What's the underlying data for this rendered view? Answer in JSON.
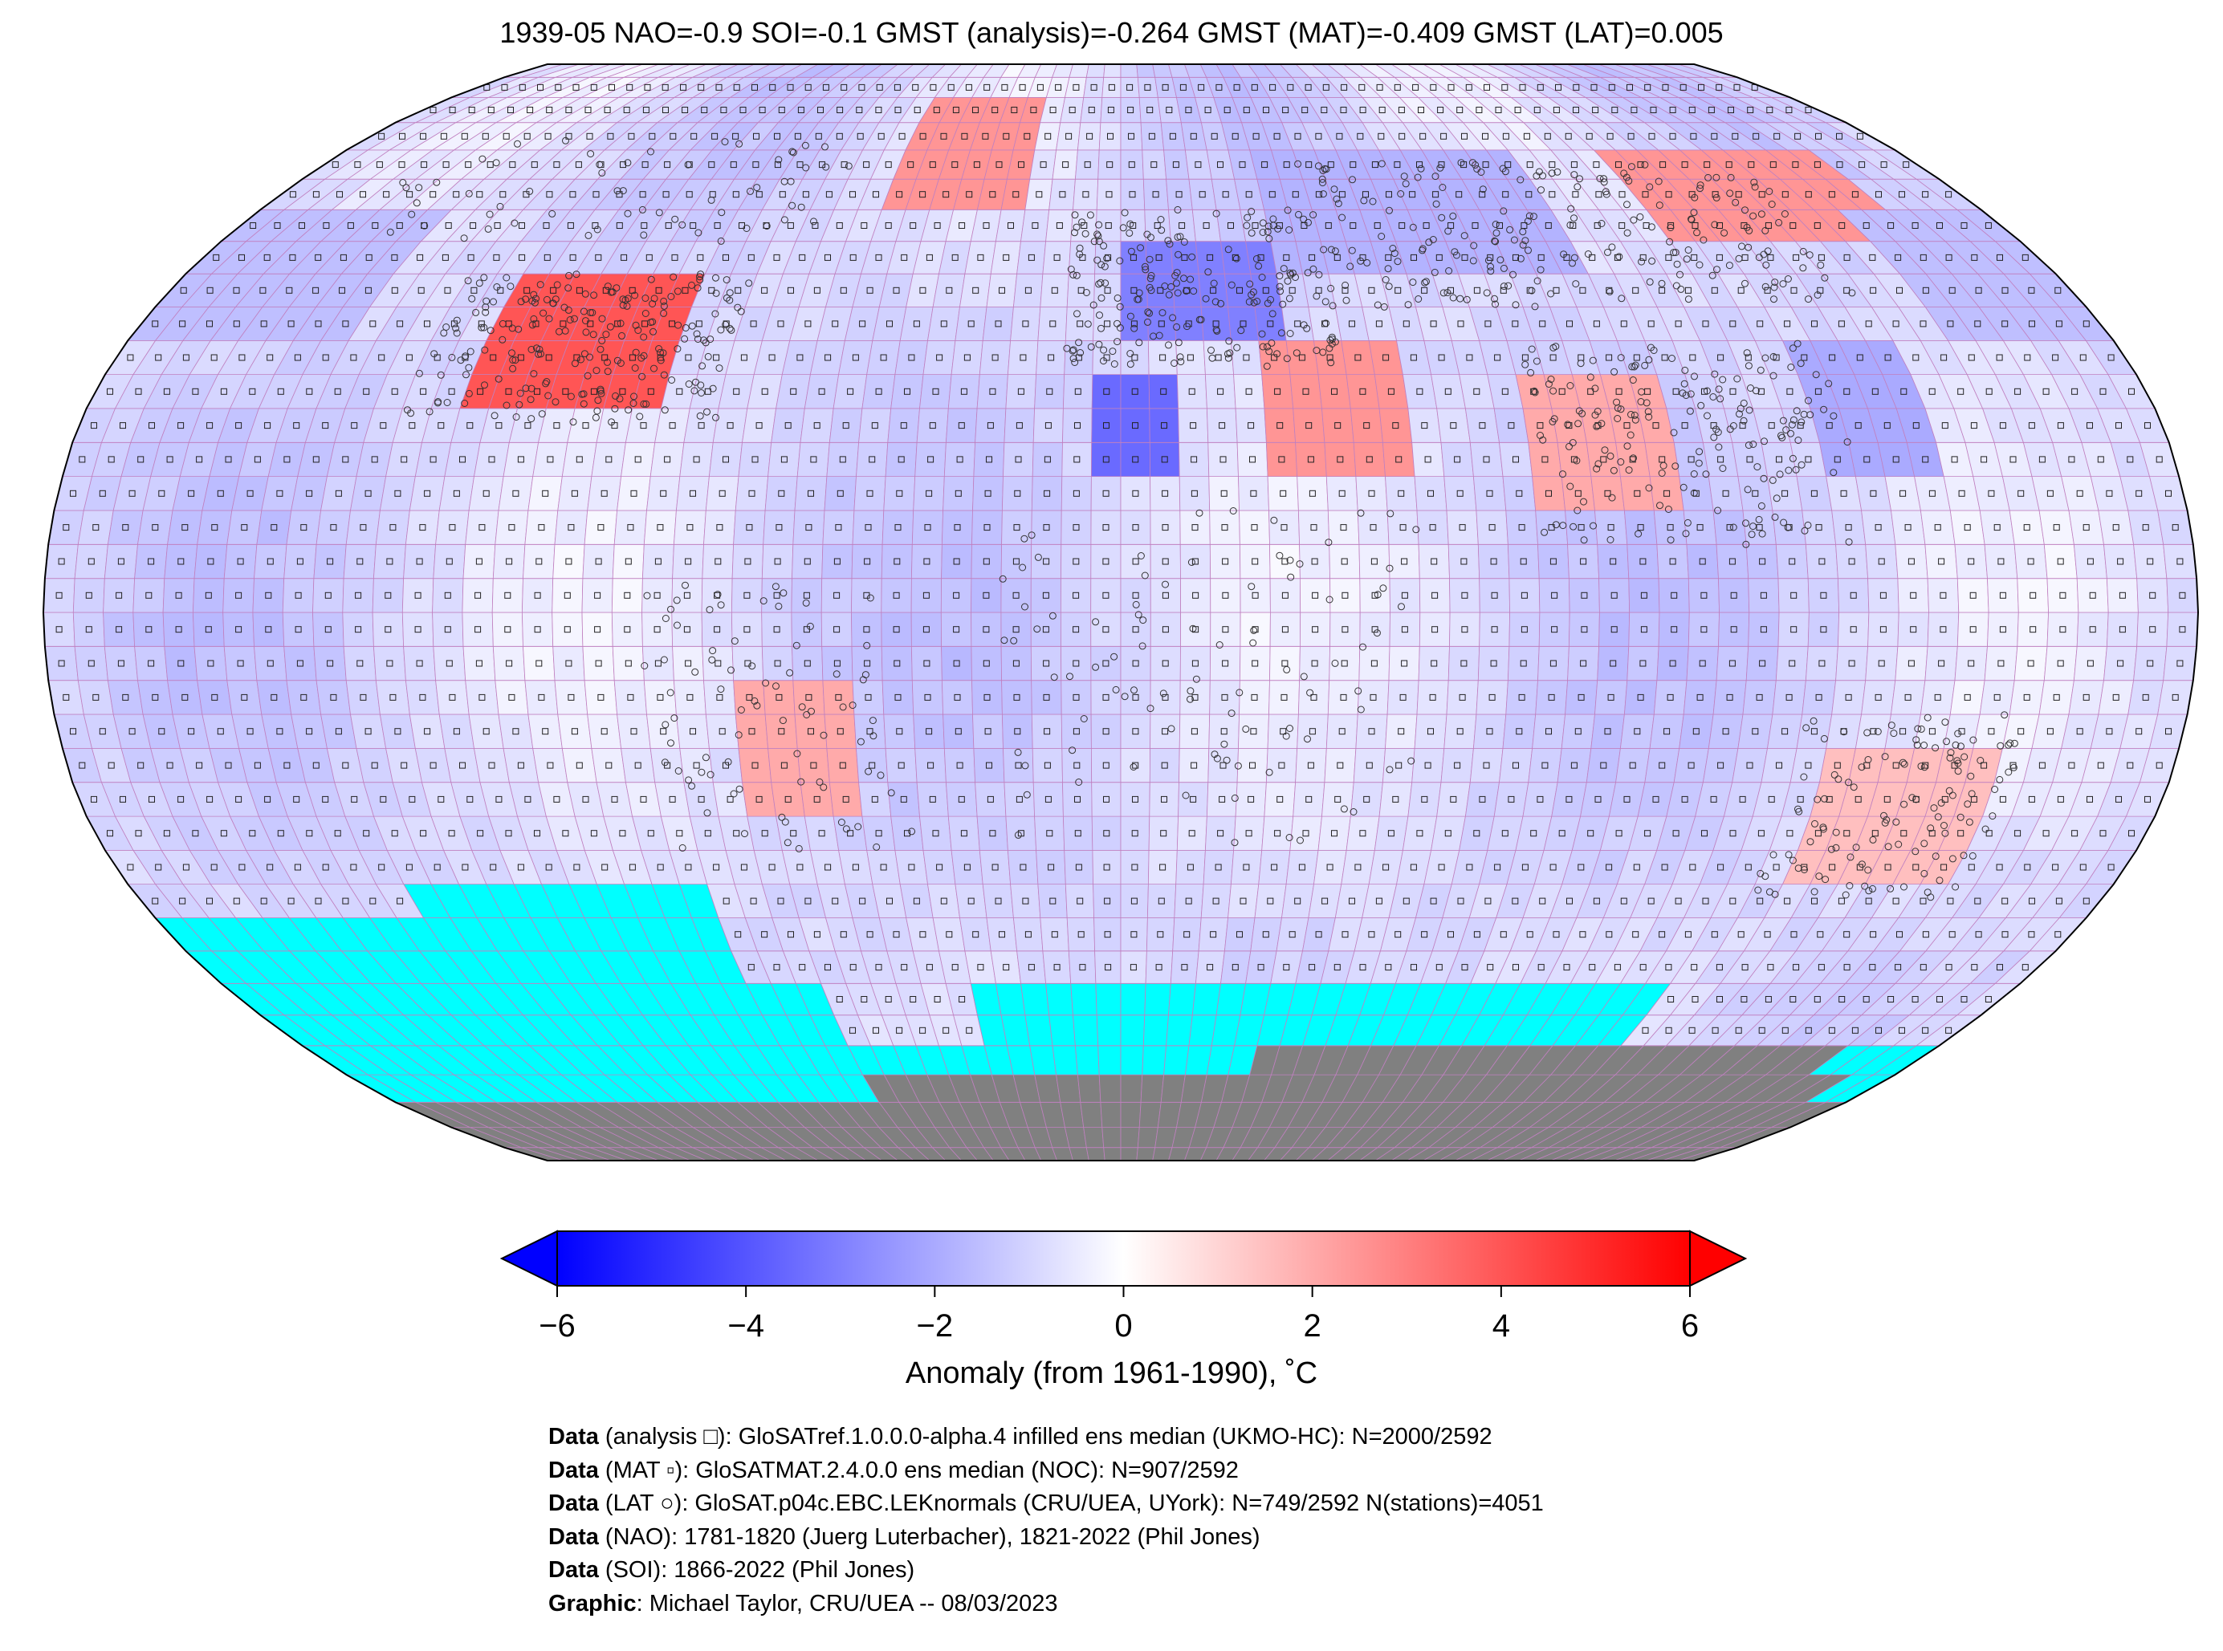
{
  "title": "1939-05 NAO=-0.9 SOI=-0.1 GMST (analysis)=-0.264 GMST (MAT)=-0.409 GMST (LAT)=0.005",
  "map": {
    "projection": "Robinson",
    "grid_resolution_deg": 5,
    "masked_color": "#00ffff",
    "land_ice_color": "#808080",
    "grid_line_color": "#c080c0",
    "anomaly_fields": [
      {
        "region": "central-north-america",
        "lon": [
          -115,
          -80
        ],
        "lat": [
          30,
          50
        ],
        "value": 4.0
      },
      {
        "region": "greenland",
        "lon": [
          -50,
          -20
        ],
        "lat": [
          60,
          80
        ],
        "value": 2.5
      },
      {
        "region": "eastern-siberia",
        "lon": [
          110,
          160
        ],
        "lat": [
          55,
          72
        ],
        "value": 2.5
      },
      {
        "region": "north-africa",
        "lon": [
          -5,
          10
        ],
        "lat": [
          20,
          35
        ],
        "value": -3.5
      },
      {
        "region": "central-europe",
        "lon": [
          0,
          30
        ],
        "lat": [
          42,
          55
        ],
        "value": -3.0
      },
      {
        "region": "russia",
        "lon": [
          30,
          90
        ],
        "lat": [
          50,
          70
        ],
        "value": -1.8
      },
      {
        "region": "middle-east",
        "lon": [
          25,
          50
        ],
        "lat": [
          20,
          40
        ],
        "value": 2.5
      },
      {
        "region": "south-asia",
        "lon": [
          70,
          95
        ],
        "lat": [
          15,
          35
        ],
        "value": 2.0
      },
      {
        "region": "south-america",
        "lon": [
          -65,
          -45
        ],
        "lat": [
          -30,
          -10
        ],
        "value": 2.0
      },
      {
        "region": "australia",
        "lon": [
          120,
          150
        ],
        "lat": [
          -40,
          -20
        ],
        "value": 1.5
      },
      {
        "region": "north-pacific",
        "lon": [
          150,
          220
        ],
        "lat": [
          40,
          60
        ],
        "value": -1.5
      },
      {
        "region": "east-asia-coast",
        "lon": [
          120,
          140
        ],
        "lat": [
          20,
          40
        ],
        "value": -2.0
      }
    ]
  },
  "colorbar": {
    "vmin": -6,
    "vmax": 6,
    "colormap": "bwr",
    "ticks": [
      "−6",
      "−4",
      "−2",
      "0",
      "2",
      "4",
      "6"
    ],
    "label": "Anomaly (from 1961-1990), ˚C"
  },
  "credits": [
    {
      "bold": "Data",
      "text": " (analysis □): GloSATref.1.0.0.0-alpha.4 infilled ens median (UKMO-HC): N=2000/2592"
    },
    {
      "bold": "Data",
      "text": " (MAT ▫): GloSATMAT.2.4.0.0 ens median (NOC): N=907/2592"
    },
    {
      "bold": "Data",
      "text": " (LAT ○): GloSAT.p04c.EBC.LEKnormals (CRU/UEA, UYork): N=749/2592 N(stations)=4051"
    },
    {
      "bold": "Data",
      "text": " (NAO): 1781-1820 (Juerg Luterbacher), 1821-2022 (Phil Jones)"
    },
    {
      "bold": "Data",
      "text": " (SOI): 1866-2022 (Phil Jones)"
    },
    {
      "bold": "Graphic",
      "text": ": Michael Taylor, CRU/UEA -- 08/03/2023"
    }
  ]
}
